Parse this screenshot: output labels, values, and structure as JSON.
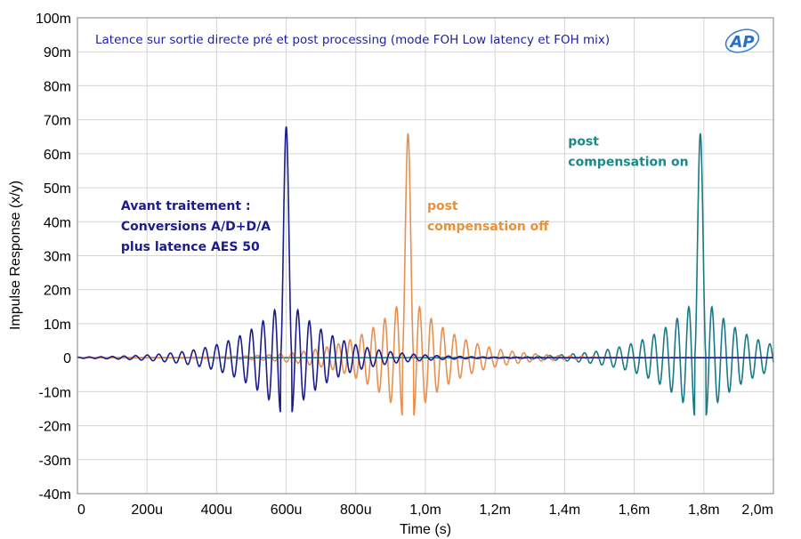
{
  "chart_data": {
    "type": "line",
    "title": "Latence sur sortie directe pré et post processing (mode FOH Low latency et FOH  mix)",
    "xlabel": "Time (s)",
    "ylabel": "Impulse Response (x/y)",
    "xlim": [
      0,
      0.002
    ],
    "ylim": [
      -0.04,
      0.1
    ],
    "grid": true,
    "x_tick_labels": [
      "0",
      "200u",
      "400u",
      "600u",
      "800u",
      "1,0m",
      "1,2m",
      "1,4m",
      "1,6m",
      "1,8m",
      "2,0m"
    ],
    "y_tick_labels": [
      "-40m",
      "-30m",
      "-20m",
      "-10m",
      "0",
      "10m",
      "20m",
      "30m",
      "40m",
      "50m",
      "60m",
      "70m",
      "80m",
      "90m",
      "100m"
    ],
    "logo": "AP",
    "series": [
      {
        "color": "#1c1c8c",
        "peak_time": 0.0006,
        "peak_value": 0.068,
        "min_value": -0.016,
        "oscillation_period": 3.33e-05
      },
      {
        "color": "#e89050",
        "peak_time": 0.00095,
        "peak_value": 0.066,
        "min_value": -0.017,
        "oscillation_period": 3.33e-05
      },
      {
        "color": "#197a87",
        "peak_time": 0.00179,
        "peak_value": 0.066,
        "min_value": -0.017,
        "oscillation_period": 3.33e-05
      }
    ],
    "annotations": [
      {
        "lines": [
          "Avant traitement :",
          "Conversions A/D+D/A",
          "plus latence AES 50"
        ],
        "color": "#1c1c8c",
        "x": 0.000125,
        "y": 0.0435
      },
      {
        "lines": [
          "post",
          "compensation off"
        ],
        "color": "#e8913a",
        "x": 0.001005,
        "y": 0.0435
      },
      {
        "lines": [
          "post",
          "compensation on"
        ],
        "color": "#198a8a",
        "x": 0.00141,
        "y": 0.0625
      }
    ]
  }
}
